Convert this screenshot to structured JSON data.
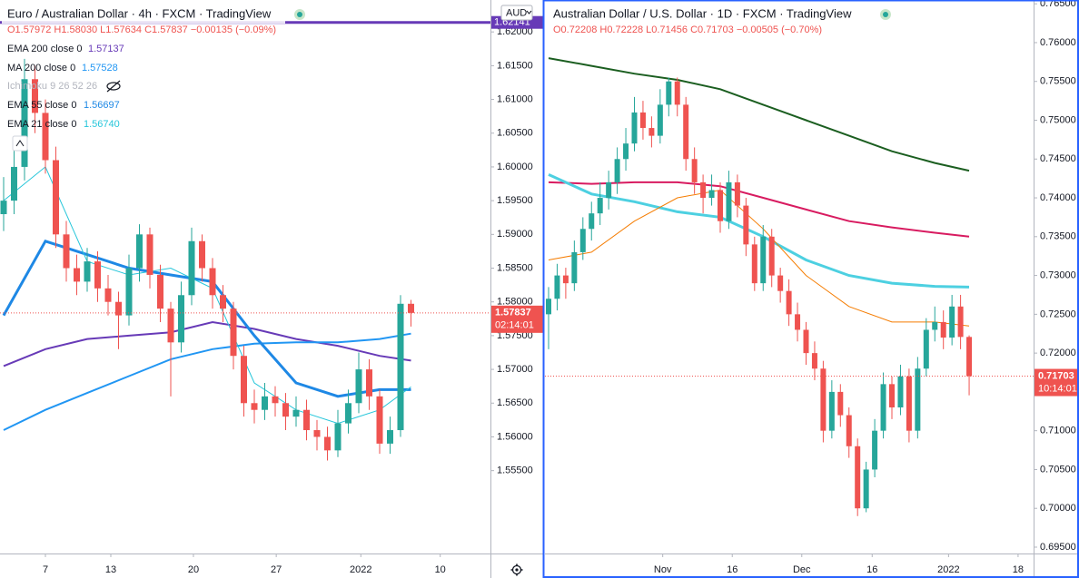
{
  "chart_data": [
    {
      "type": "candlestick",
      "title": "Euro / Australian Dollar · 4h · FXCM · TradingView",
      "ohlc_text": "O1.57972 H1.58030 L1.57634 C1.57837 −0.00135 (−0.09%)",
      "currency": "AUD",
      "up_color": "#26a69a",
      "down_color": "#ef5350",
      "ylim": [
        1.54272,
        1.62473
      ],
      "yticks": [
        {
          "value": 1.555,
          "label": "1.55500"
        },
        {
          "value": 1.56,
          "label": "1.56000"
        },
        {
          "value": 1.565,
          "label": "1.56500"
        },
        {
          "value": 1.57,
          "label": "1.57000"
        },
        {
          "value": 1.575,
          "label": "1.57500"
        },
        {
          "value": 1.58,
          "label": "1.58000"
        },
        {
          "value": 1.585,
          "label": "1.58500"
        },
        {
          "value": 1.59,
          "label": "1.59000"
        },
        {
          "value": 1.595,
          "label": "1.59500"
        },
        {
          "value": 1.6,
          "label": "1.60000"
        },
        {
          "value": 1.605,
          "label": "1.60500"
        },
        {
          "value": 1.61,
          "label": "1.61000"
        },
        {
          "value": 1.615,
          "label": "1.61500"
        },
        {
          "value": 1.62,
          "label": "1.62000"
        }
      ],
      "xticks": [
        {
          "value": 4,
          "label": "7"
        },
        {
          "value": 10.26,
          "label": "13"
        },
        {
          "value": 18.17,
          "label": "20"
        },
        {
          "value": 26.1,
          "label": "27"
        },
        {
          "value": 34.2,
          "label": "2022"
        },
        {
          "value": 41.8,
          "label": "10"
        }
      ],
      "candles": [
        [
          1.593,
          1.5985,
          1.5905,
          1.595
        ],
        [
          1.595,
          1.603,
          1.593,
          1.6
        ],
        [
          1.6,
          1.616,
          1.598,
          1.613
        ],
        [
          1.613,
          1.615,
          1.605,
          1.608
        ],
        [
          1.608,
          1.61,
          1.599,
          1.601
        ],
        [
          1.601,
          1.603,
          1.588,
          1.59
        ],
        [
          1.59,
          1.592,
          1.583,
          1.585
        ],
        [
          1.585,
          1.587,
          1.581,
          1.583
        ],
        [
          1.583,
          1.588,
          1.5815,
          1.586
        ],
        [
          1.586,
          1.5875,
          1.58,
          1.582
        ],
        [
          1.582,
          1.584,
          1.578,
          1.58
        ],
        [
          1.58,
          1.5815,
          1.573,
          1.578
        ],
        [
          1.578,
          1.587,
          1.5765,
          1.585
        ],
        [
          1.585,
          1.5915,
          1.583,
          1.59
        ],
        [
          1.59,
          1.591,
          1.582,
          1.584
        ],
        [
          1.584,
          1.5855,
          1.577,
          1.579
        ],
        [
          1.579,
          1.58,
          1.566,
          1.574
        ],
        [
          1.574,
          1.583,
          1.5725,
          1.581
        ],
        [
          1.581,
          1.591,
          1.5795,
          1.589
        ],
        [
          1.589,
          1.59,
          1.583,
          1.585
        ],
        [
          1.585,
          1.5865,
          1.579,
          1.581
        ],
        [
          1.581,
          1.5825,
          1.577,
          1.579
        ],
        [
          1.579,
          1.58,
          1.57,
          1.572
        ],
        [
          1.572,
          1.5735,
          1.563,
          1.565
        ],
        [
          1.565,
          1.567,
          1.562,
          1.564
        ],
        [
          1.564,
          1.568,
          1.5625,
          1.566
        ],
        [
          1.566,
          1.5675,
          1.563,
          1.565
        ],
        [
          1.565,
          1.5665,
          1.561,
          1.563
        ],
        [
          1.563,
          1.566,
          1.5615,
          1.564
        ],
        [
          1.564,
          1.5655,
          1.5595,
          1.561
        ],
        [
          1.561,
          1.5625,
          1.558,
          1.56
        ],
        [
          1.56,
          1.5615,
          1.5565,
          1.558
        ],
        [
          1.558,
          1.564,
          1.557,
          1.562
        ],
        [
          1.562,
          1.567,
          1.5605,
          1.565
        ],
        [
          1.565,
          1.5725,
          1.5635,
          1.57
        ],
        [
          1.57,
          1.5715,
          1.564,
          1.566
        ],
        [
          1.566,
          1.567,
          1.5575,
          1.559
        ],
        [
          1.559,
          1.563,
          1.5575,
          1.561
        ],
        [
          1.561,
          1.581,
          1.56,
          1.57972
        ],
        [
          1.57972,
          1.5803,
          1.57634,
          1.57837
        ]
      ],
      "line_x": [
        0,
        4,
        8,
        12,
        16,
        20,
        24,
        28,
        32,
        36,
        39
      ],
      "lines": [
        {
          "name": "EMA 200 close 0",
          "value_label": "1.57137",
          "color": "#673ab7",
          "width": 2,
          "values": [
            1.5705,
            1.573,
            1.5745,
            1.575,
            1.5755,
            1.577,
            1.576,
            1.5745,
            1.5735,
            1.572,
            1.5713
          ]
        },
        {
          "name": "MA 200 close 0",
          "value_label": "1.57528",
          "color": "#2196f3",
          "width": 2,
          "values": [
            1.561,
            1.564,
            1.5665,
            1.569,
            1.5715,
            1.573,
            1.5738,
            1.574,
            1.574,
            1.5745,
            1.5753
          ]
        },
        {
          "name": "EMA 55 close 0",
          "value_label": "1.56697",
          "color": "#1e88e5",
          "width": 3,
          "values": [
            1.578,
            1.589,
            1.587,
            1.585,
            1.584,
            1.583,
            1.575,
            1.568,
            1.566,
            1.567,
            1.567
          ]
        },
        {
          "name": "EMA 21 close 0",
          "value_label": "1.56740",
          "color": "#26c6da",
          "width": 1,
          "values": [
            1.595,
            1.6,
            1.586,
            1.584,
            1.585,
            1.582,
            1.568,
            1.564,
            1.562,
            1.564,
            1.5674
          ]
        }
      ],
      "hidden_indicator": "Ichimoku 9 26 52 26",
      "level_line": {
        "value": 1.62141,
        "color": "#673ab7"
      },
      "last_price": 1.57837,
      "countdown": "02:14:01"
    },
    {
      "type": "candlestick",
      "title": "Australian Dollar / U.S. Dollar · 1D · FXCM · TradingView",
      "ohlc_text": "O0.72208 H0.72228 L0.71456 C0.71703 −0.00505 (−0.70%)",
      "up_color": "#26a69a",
      "down_color": "#ef5350",
      "ylim": [
        0.69418,
        0.76549
      ],
      "yticks": [
        {
          "value": 0.695,
          "label": "0.69500"
        },
        {
          "value": 0.7,
          "label": "0.70000"
        },
        {
          "value": 0.705,
          "label": "0.70500"
        },
        {
          "value": 0.71,
          "label": "0.71000"
        },
        {
          "value": 0.715,
          "label": "0.71500"
        },
        {
          "value": 0.72,
          "label": "0.72000"
        },
        {
          "value": 0.725,
          "label": "0.72500"
        },
        {
          "value": 0.73,
          "label": "0.73000"
        },
        {
          "value": 0.735,
          "label": "0.73500"
        },
        {
          "value": 0.74,
          "label": "0.74000"
        },
        {
          "value": 0.745,
          "label": "0.74500"
        },
        {
          "value": 0.75,
          "label": "0.75000"
        },
        {
          "value": 0.755,
          "label": "0.75500"
        },
        {
          "value": 0.76,
          "label": "0.76000"
        },
        {
          "value": 0.765,
          "label": "0.76500"
        }
      ],
      "xticks": [
        {
          "value": 13.3,
          "label": "Nov"
        },
        {
          "value": 21.4,
          "label": "16"
        },
        {
          "value": 29.5,
          "label": "Dec"
        },
        {
          "value": 37.7,
          "label": "16"
        },
        {
          "value": 46.6,
          "label": "2022"
        },
        {
          "value": 54.7,
          "label": "18"
        }
      ],
      "candles": [
        [
          0.725,
          0.7285,
          0.7205,
          0.727
        ],
        [
          0.727,
          0.7315,
          0.7255,
          0.73
        ],
        [
          0.73,
          0.731,
          0.727,
          0.729
        ],
        [
          0.729,
          0.7345,
          0.728,
          0.733
        ],
        [
          0.733,
          0.7375,
          0.732,
          0.736
        ],
        [
          0.736,
          0.7395,
          0.7345,
          0.738
        ],
        [
          0.738,
          0.742,
          0.7365,
          0.74
        ],
        [
          0.74,
          0.7435,
          0.7385,
          0.742
        ],
        [
          0.742,
          0.7465,
          0.7405,
          0.745
        ],
        [
          0.745,
          0.749,
          0.7435,
          0.747
        ],
        [
          0.747,
          0.753,
          0.746,
          0.751
        ],
        [
          0.751,
          0.7525,
          0.7475,
          0.749
        ],
        [
          0.749,
          0.7505,
          0.7465,
          0.748
        ],
        [
          0.748,
          0.754,
          0.747,
          0.752
        ],
        [
          0.752,
          0.7555,
          0.7505,
          0.755
        ],
        [
          0.755,
          0.7555,
          0.7505,
          0.752
        ],
        [
          0.752,
          0.753,
          0.7435,
          0.745
        ],
        [
          0.745,
          0.7465,
          0.7405,
          0.742
        ],
        [
          0.742,
          0.743,
          0.738,
          0.74
        ],
        [
          0.74,
          0.743,
          0.739,
          0.741
        ],
        [
          0.741,
          0.742,
          0.7355,
          0.737
        ],
        [
          0.737,
          0.7435,
          0.736,
          0.742
        ],
        [
          0.742,
          0.743,
          0.7375,
          0.739
        ],
        [
          0.739,
          0.74,
          0.7325,
          0.734
        ],
        [
          0.734,
          0.735,
          0.728,
          0.729
        ],
        [
          0.729,
          0.7365,
          0.728,
          0.735
        ],
        [
          0.735,
          0.736,
          0.7285,
          0.73
        ],
        [
          0.73,
          0.731,
          0.7265,
          0.728
        ],
        [
          0.728,
          0.7295,
          0.7235,
          0.725
        ],
        [
          0.725,
          0.7265,
          0.7215,
          0.723
        ],
        [
          0.723,
          0.724,
          0.7185,
          0.72
        ],
        [
          0.72,
          0.7215,
          0.7165,
          0.718
        ],
        [
          0.718,
          0.719,
          0.7085,
          0.71
        ],
        [
          0.71,
          0.7165,
          0.709,
          0.715
        ],
        [
          0.715,
          0.716,
          0.7105,
          0.712
        ],
        [
          0.712,
          0.713,
          0.7065,
          0.708
        ],
        [
          0.708,
          0.709,
          0.699,
          0.7
        ],
        [
          0.7,
          0.706,
          0.6995,
          0.705
        ],
        [
          0.705,
          0.7115,
          0.704,
          0.71
        ],
        [
          0.71,
          0.7175,
          0.709,
          0.716
        ],
        [
          0.716,
          0.717,
          0.7115,
          0.713
        ],
        [
          0.713,
          0.7185,
          0.712,
          0.717
        ],
        [
          0.717,
          0.718,
          0.7085,
          0.71
        ],
        [
          0.71,
          0.7195,
          0.709,
          0.718
        ],
        [
          0.718,
          0.7245,
          0.717,
          0.723
        ],
        [
          0.723,
          0.726,
          0.7215,
          0.724
        ],
        [
          0.724,
          0.7255,
          0.7205,
          0.722
        ],
        [
          0.722,
          0.7275,
          0.721,
          0.726
        ],
        [
          0.726,
          0.7275,
          0.7205,
          0.72208
        ],
        [
          0.72208,
          0.72228,
          0.71456,
          0.71703
        ]
      ],
      "line_x": [
        0,
        5,
        10,
        15,
        20,
        25,
        30,
        35,
        40,
        45,
        49
      ],
      "lines": [
        {
          "color": "#1b5e20",
          "width": 2,
          "values": [
            0.758,
            0.757,
            0.756,
            0.7552,
            0.754,
            0.752,
            0.75,
            0.748,
            0.746,
            0.7445,
            0.7435
          ]
        },
        {
          "color": "#d81b60",
          "width": 2,
          "values": [
            0.742,
            0.7418,
            0.742,
            0.742,
            0.7415,
            0.74,
            0.7385,
            0.737,
            0.7362,
            0.7355,
            0.735
          ]
        },
        {
          "color": "#4dd0e1",
          "width": 3,
          "values": [
            0.743,
            0.7405,
            0.7395,
            0.7382,
            0.7375,
            0.735,
            0.732,
            0.73,
            0.729,
            0.7286,
            0.7285
          ]
        },
        {
          "color": "#f57c00",
          "width": 1,
          "values": [
            0.732,
            0.733,
            0.737,
            0.74,
            0.741,
            0.736,
            0.73,
            0.726,
            0.724,
            0.724,
            0.7235
          ]
        }
      ],
      "last_price": 0.71703,
      "countdown": "10:14:01"
    }
  ]
}
